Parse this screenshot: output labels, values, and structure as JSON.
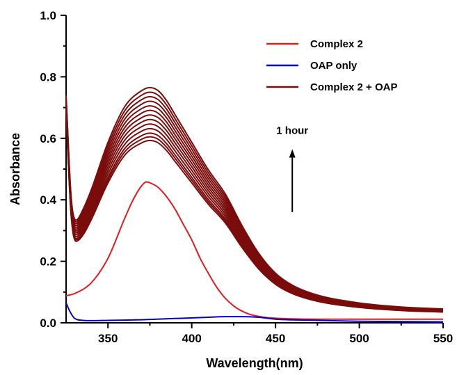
{
  "chart_data": {
    "type": "line",
    "title": "",
    "xlabel": "Wavelength(nm)",
    "ylabel": "Absorbance",
    "xlim": [
      325,
      550
    ],
    "ylim": [
      0.0,
      1.0
    ],
    "xticks": [
      350,
      400,
      450,
      500,
      550
    ],
    "yticks": [
      "0.0",
      "0.2",
      "0.4",
      "0.6",
      "0.8",
      "1.0"
    ],
    "grid": false,
    "legend_position": "top-right",
    "legend": [
      {
        "name": "Complex 2",
        "color": "#e31a1c"
      },
      {
        "name": "OAP only",
        "color": "#0000cc"
      },
      {
        "name": "Complex 2 + OAP",
        "color": "#7a0c0c"
      }
    ],
    "annotation": {
      "text": "1 hour",
      "arrow": "up",
      "x": 460,
      "y_from": 0.36,
      "y_to": 0.56
    },
    "series": [
      {
        "name": "Complex 2",
        "color": "#e31a1c",
        "x": [
          325,
          330,
          340,
          350,
          360,
          365,
          370,
          373,
          376,
          380,
          385,
          390,
          395,
          400,
          405,
          410,
          415,
          420,
          425,
          430,
          435,
          440,
          445,
          450,
          460,
          475,
          500,
          525,
          550
        ],
        "y": [
          0.088,
          0.095,
          0.13,
          0.21,
          0.34,
          0.4,
          0.445,
          0.458,
          0.453,
          0.44,
          0.41,
          0.37,
          0.32,
          0.27,
          0.21,
          0.16,
          0.115,
          0.08,
          0.055,
          0.038,
          0.027,
          0.021,
          0.017,
          0.015,
          0.013,
          0.012,
          0.012,
          0.012,
          0.012
        ]
      },
      {
        "name": "OAP only",
        "color": "#0000cc",
        "x": [
          325,
          327,
          330,
          335,
          340,
          350,
          370,
          390,
          410,
          420,
          430,
          440,
          450,
          475,
          500,
          550
        ],
        "y": [
          0.065,
          0.04,
          0.015,
          0.008,
          0.007,
          0.008,
          0.01,
          0.014,
          0.018,
          0.02,
          0.02,
          0.018,
          0.012,
          0.008,
          0.005,
          0.003
        ]
      },
      {
        "name": "Complex 2 + OAP",
        "color": "#7a0c0c",
        "x": [
          325,
          328,
          331,
          335,
          340,
          350,
          360,
          370,
          375,
          380,
          385,
          390,
          400,
          410,
          420,
          430,
          440,
          450,
          460,
          475,
          500,
          525,
          550
        ],
        "y": [
          0.68,
          0.35,
          0.265,
          0.285,
          0.335,
          0.455,
          0.545,
          0.585,
          0.593,
          0.585,
          0.56,
          0.525,
          0.455,
          0.385,
          0.325,
          0.245,
          0.175,
          0.125,
          0.095,
          0.07,
          0.05,
          0.04,
          0.035
        ]
      }
    ],
    "complex2_oap_scale": [
      1.0,
      1.02,
      1.04,
      1.065,
      1.09,
      1.115,
      1.14,
      1.165,
      1.19,
      1.215,
      1.24,
      1.265,
      1.29
    ]
  }
}
